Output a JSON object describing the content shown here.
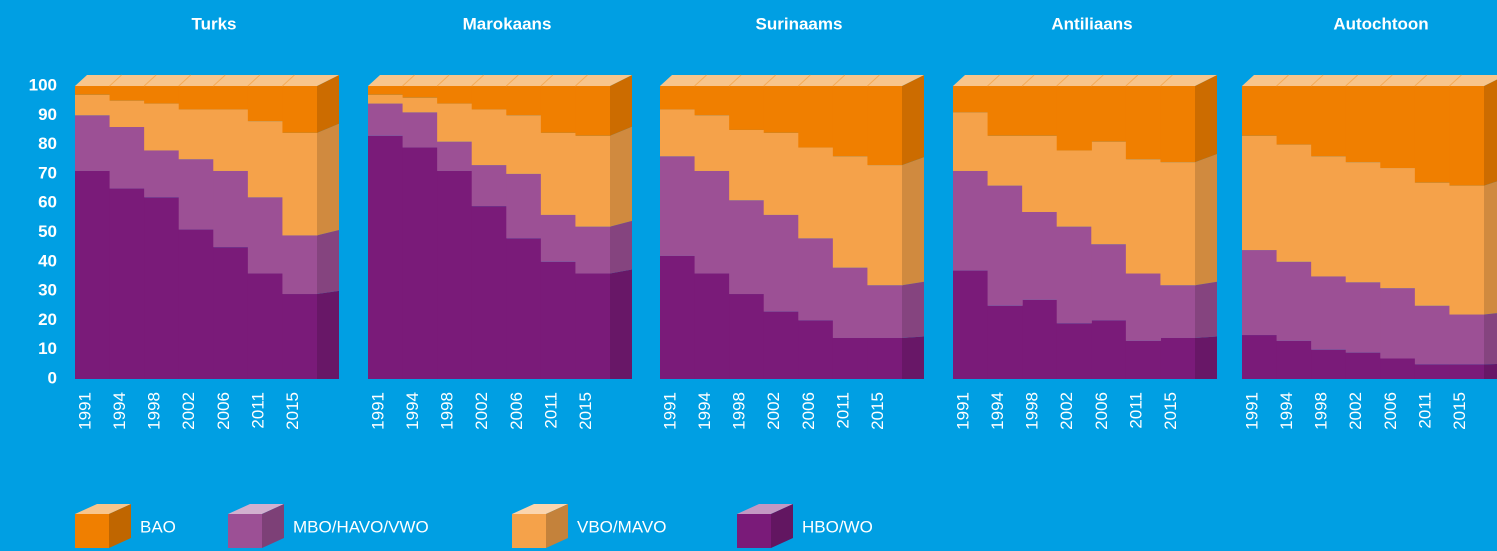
{
  "chart_data": [
    {
      "type": "step-area",
      "title": "Turks",
      "categories": [
        "1991",
        "1994",
        "1998",
        "2002",
        "2006",
        "2011",
        "2015"
      ],
      "ylim": [
        0,
        100
      ],
      "yticks": [
        0,
        10,
        20,
        30,
        40,
        50,
        60,
        70,
        80,
        90,
        100
      ],
      "series": [
        {
          "name": "BAO",
          "color": "#f07f00",
          "values": [
            3,
            5,
            6,
            8,
            8,
            12,
            16
          ]
        },
        {
          "name": "MBO/HAVO/VWO",
          "color": "#9c5095",
          "values": [
            19,
            21,
            16,
            24,
            26,
            26,
            20
          ]
        },
        {
          "name": "VBO/MAVO",
          "color": "#f5a24a",
          "values": [
            7,
            9,
            16,
            17,
            21,
            26,
            35
          ]
        },
        {
          "name": "HBO/WO",
          "color": "#7a1b79",
          "values": [
            71,
            65,
            62,
            51,
            45,
            36,
            29
          ]
        }
      ]
    },
    {
      "type": "step-area",
      "title": "Marokaans",
      "categories": [
        "1991",
        "1994",
        "1998",
        "2002",
        "2006",
        "2011",
        "2015"
      ],
      "ylim": [
        0,
        100
      ],
      "series": [
        {
          "color": "#f07f00",
          "values": [
            3,
            4,
            6,
            8,
            10,
            16,
            17
          ]
        },
        {
          "color": "#9c5095",
          "values": [
            11,
            12,
            10,
            14,
            22,
            16,
            16
          ]
        },
        {
          "color": "#f5a24a",
          "values": [
            3,
            5,
            13,
            19,
            20,
            28,
            31
          ]
        },
        {
          "color": "#7a1b79",
          "values": [
            83,
            79,
            71,
            59,
            48,
            40,
            36
          ]
        }
      ]
    },
    {
      "type": "step-area",
      "title": "Surinaams",
      "categories": [
        "1991",
        "1994",
        "1998",
        "2002",
        "2006",
        "2011",
        "2015"
      ],
      "ylim": [
        0,
        100
      ],
      "series": [
        {
          "color": "#f07f00",
          "values": [
            8,
            10,
            15,
            16,
            21,
            24,
            27
          ]
        },
        {
          "color": "#9c5095",
          "values": [
            34,
            35,
            32,
            33,
            28,
            24,
            18
          ]
        },
        {
          "color": "#f5a24a",
          "values": [
            16,
            19,
            24,
            28,
            31,
            38,
            41
          ]
        },
        {
          "color": "#7a1b79",
          "values": [
            42,
            36,
            29,
            23,
            20,
            14,
            14
          ]
        }
      ]
    },
    {
      "type": "step-area",
      "title": "Antiliaans",
      "categories": [
        "1991",
        "1994",
        "1998",
        "2002",
        "2006",
        "2011",
        "2015"
      ],
      "ylim": [
        0,
        100
      ],
      "series": [
        {
          "color": "#f07f00",
          "values": [
            9,
            17,
            17,
            22,
            19,
            25,
            26
          ]
        },
        {
          "color": "#9c5095",
          "values": [
            34,
            41,
            30,
            33,
            26,
            23,
            18
          ]
        },
        {
          "color": "#f5a24a",
          "values": [
            20,
            17,
            26,
            26,
            35,
            39,
            42
          ]
        },
        {
          "color": "#7a1b79",
          "values": [
            37,
            25,
            27,
            19,
            20,
            13,
            14
          ]
        }
      ]
    },
    {
      "type": "step-area",
      "title": "Autochtoon",
      "categories": [
        "1991",
        "1994",
        "1998",
        "2002",
        "2006",
        "2011",
        "2015"
      ],
      "ylim": [
        0,
        100
      ],
      "series": [
        {
          "color": "#f07f00",
          "values": [
            17,
            20,
            24,
            26,
            28,
            33,
            34
          ]
        },
        {
          "color": "#9c5095",
          "values": [
            29,
            27,
            25,
            24,
            24,
            20,
            17
          ]
        },
        {
          "color": "#f5a24a",
          "values": [
            39,
            40,
            41,
            41,
            41,
            42,
            44
          ]
        },
        {
          "color": "#7a1b79",
          "values": [
            15,
            13,
            10,
            9,
            7,
            5,
            5
          ]
        }
      ]
    }
  ]
}
